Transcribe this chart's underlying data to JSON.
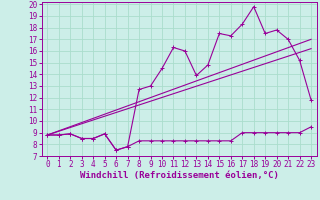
{
  "xlabel": "Windchill (Refroidissement éolien,°C)",
  "bg_color": "#cceee8",
  "grid_color": "#aaddcc",
  "line_color": "#990099",
  "xlim": [
    -0.5,
    23.5
  ],
  "ylim": [
    7,
    20.2
  ],
  "xticks": [
    0,
    1,
    2,
    3,
    4,
    5,
    6,
    7,
    8,
    9,
    10,
    11,
    12,
    13,
    14,
    15,
    16,
    17,
    18,
    19,
    20,
    21,
    22,
    23
  ],
  "yticks": [
    7,
    8,
    9,
    10,
    11,
    12,
    13,
    14,
    15,
    16,
    17,
    18,
    19,
    20
  ],
  "line1_x": [
    0,
    1,
    2,
    3,
    4,
    5,
    6,
    7,
    8,
    9,
    10,
    11,
    12,
    13,
    14,
    15,
    16,
    17,
    18,
    19,
    20,
    21,
    22,
    23
  ],
  "line1_y": [
    8.8,
    8.8,
    8.9,
    8.5,
    8.5,
    8.9,
    7.5,
    7.8,
    8.3,
    8.3,
    8.3,
    8.3,
    8.3,
    8.3,
    8.3,
    8.3,
    8.3,
    9.0,
    9.0,
    9.0,
    9.0,
    9.0,
    9.0,
    9.5
  ],
  "line2_x": [
    0,
    1,
    2,
    3,
    4,
    5,
    6,
    7,
    8,
    9,
    10,
    11,
    12,
    13,
    14,
    15,
    16,
    17,
    18,
    19,
    20,
    21,
    22,
    23
  ],
  "line2_y": [
    8.8,
    8.8,
    8.9,
    8.5,
    8.5,
    8.9,
    7.5,
    7.8,
    12.7,
    13.0,
    14.5,
    16.3,
    16.0,
    13.9,
    14.8,
    17.5,
    17.3,
    18.3,
    19.8,
    17.5,
    17.8,
    17.0,
    15.2,
    11.8
  ],
  "line3_x": [
    0,
    23
  ],
  "line3_y": [
    8.8,
    17.0
  ],
  "line4_x": [
    0,
    23
  ],
  "line4_y": [
    8.8,
    16.2
  ],
  "fontsize_axis": 6,
  "fontsize_tick": 5.5,
  "fontsize_xlabel": 6.5
}
